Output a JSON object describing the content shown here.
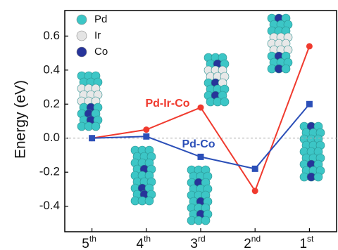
{
  "chart_data": {
    "type": "line",
    "y_label": "Energy (eV)",
    "categories": [
      "5th",
      "4th",
      "3rd",
      "2nd",
      "1st"
    ],
    "series": [
      {
        "name": "Pd-Ir-Co",
        "color": "#f03a2e",
        "values": [
          0,
          0.05,
          0.18,
          -0.31,
          0.54
        ]
      },
      {
        "name": "Pd-Co",
        "color": "#2b4fb8",
        "values": [
          0,
          0.01,
          -0.11,
          -0.18,
          0.2
        ]
      }
    ],
    "ylim": [
      -0.55,
      0.75
    ],
    "yticks": [
      -0.4,
      -0.2,
      {
        "value": 0,
        "label": "0.0"
      },
      0.2,
      0.4,
      0.6
    ],
    "legend": [
      {
        "name": "Pd",
        "color": "#3cc6c6"
      },
      {
        "name": "Ir",
        "color": "#e4e4e4"
      },
      {
        "name": "Co",
        "color": "#27349a"
      }
    ]
  }
}
